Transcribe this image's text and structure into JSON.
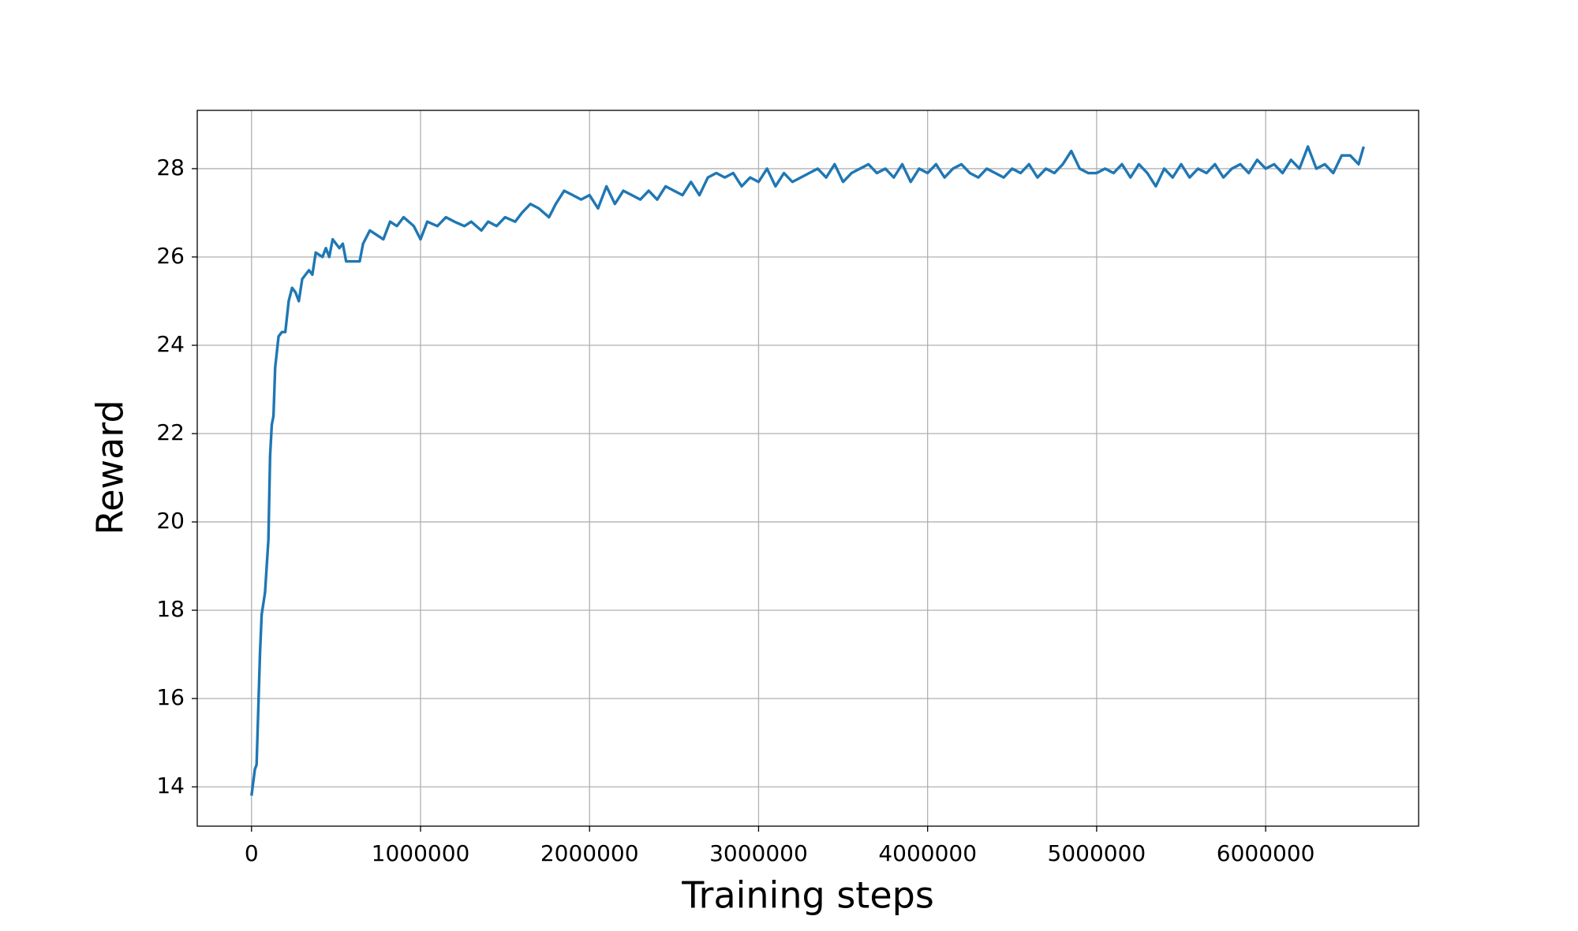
{
  "chart_data": {
    "type": "line",
    "xlabel": "Training steps",
    "ylabel": "Reward",
    "xlim": [
      -321000,
      6905000
    ],
    "ylim": [
      13.11,
      29.32
    ],
    "xticks": [
      0,
      1000000,
      2000000,
      3000000,
      4000000,
      5000000,
      6000000
    ],
    "yticks": [
      14,
      16,
      18,
      20,
      22,
      24,
      26,
      28
    ],
    "grid": true,
    "series": [
      {
        "color": "#1f77b4",
        "x": [
          0,
          20000,
          30000,
          50000,
          60000,
          80000,
          100000,
          110000,
          120000,
          130000,
          140000,
          160000,
          180000,
          200000,
          220000,
          240000,
          260000,
          280000,
          300000,
          340000,
          360000,
          380000,
          420000,
          440000,
          460000,
          480000,
          520000,
          540000,
          560000,
          600000,
          640000,
          660000,
          700000,
          740000,
          780000,
          820000,
          860000,
          900000,
          960000,
          1000000,
          1040000,
          1100000,
          1150000,
          1200000,
          1260000,
          1300000,
          1360000,
          1400000,
          1450000,
          1500000,
          1560000,
          1600000,
          1650000,
          1700000,
          1760000,
          1800000,
          1850000,
          1900000,
          1950000,
          2000000,
          2050000,
          2100000,
          2150000,
          2200000,
          2250000,
          2300000,
          2350000,
          2400000,
          2450000,
          2500000,
          2550000,
          2600000,
          2650000,
          2700000,
          2750000,
          2800000,
          2850000,
          2900000,
          2950000,
          3000000,
          3050000,
          3100000,
          3150000,
          3200000,
          3250000,
          3300000,
          3350000,
          3400000,
          3450000,
          3500000,
          3550000,
          3600000,
          3650000,
          3700000,
          3750000,
          3800000,
          3850000,
          3900000,
          3950000,
          4000000,
          4050000,
          4100000,
          4150000,
          4200000,
          4250000,
          4300000,
          4350000,
          4400000,
          4450000,
          4500000,
          4550000,
          4600000,
          4650000,
          4700000,
          4750000,
          4800000,
          4850000,
          4900000,
          4950000,
          5000000,
          5050000,
          5100000,
          5150000,
          5200000,
          5250000,
          5300000,
          5350000,
          5400000,
          5450000,
          5500000,
          5550000,
          5600000,
          5650000,
          5700000,
          5750000,
          5800000,
          5850000,
          5900000,
          5950000,
          6000000,
          6050000,
          6100000,
          6150000,
          6200000,
          6250000,
          6300000,
          6350000,
          6400000,
          6450000,
          6500000,
          6550000,
          6580000
        ],
        "values": [
          13.8,
          14.4,
          14.5,
          17.0,
          17.9,
          18.4,
          19.6,
          21.5,
          22.2,
          22.4,
          23.5,
          24.2,
          24.3,
          24.3,
          25.0,
          25.3,
          25.2,
          25.0,
          25.5,
          25.7,
          25.6,
          26.1,
          26.0,
          26.2,
          26.0,
          26.4,
          26.2,
          26.3,
          25.9,
          25.9,
          25.9,
          26.3,
          26.6,
          26.5,
          26.4,
          26.8,
          26.7,
          26.9,
          26.7,
          26.4,
          26.8,
          26.7,
          26.9,
          26.8,
          26.7,
          26.8,
          26.6,
          26.8,
          26.7,
          26.9,
          26.8,
          27.0,
          27.2,
          27.1,
          26.9,
          27.2,
          27.5,
          27.4,
          27.3,
          27.4,
          27.1,
          27.6,
          27.2,
          27.5,
          27.4,
          27.3,
          27.5,
          27.3,
          27.6,
          27.5,
          27.4,
          27.7,
          27.4,
          27.8,
          27.9,
          27.8,
          27.9,
          27.6,
          27.8,
          27.7,
          28.0,
          27.6,
          27.9,
          27.7,
          27.8,
          27.9,
          28.0,
          27.8,
          28.1,
          27.7,
          27.9,
          28.0,
          28.1,
          27.9,
          28.0,
          27.8,
          28.1,
          27.7,
          28.0,
          27.9,
          28.1,
          27.8,
          28.0,
          28.1,
          27.9,
          27.8,
          28.0,
          27.9,
          27.8,
          28.0,
          27.9,
          28.1,
          27.8,
          28.0,
          27.9,
          28.1,
          28.4,
          28.0,
          27.9,
          27.9,
          28.0,
          27.9,
          28.1,
          27.8,
          28.1,
          27.9,
          27.6,
          28.0,
          27.8,
          28.1,
          27.8,
          28.0,
          27.9,
          28.1,
          27.8,
          28.0,
          28.1,
          27.9,
          28.2,
          28.0,
          28.1,
          27.9,
          28.2,
          28.0,
          28.5,
          28.0,
          28.1,
          27.9,
          28.3,
          28.3,
          28.1,
          28.5
        ]
      }
    ]
  }
}
